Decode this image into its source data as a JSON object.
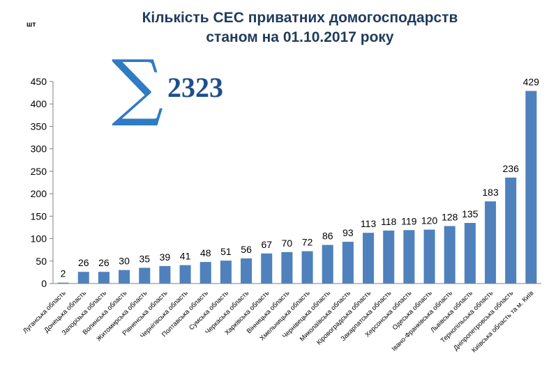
{
  "chart_data": {
    "type": "bar",
    "title_line1": "Кількість СЕС приватних домогосподарств",
    "title_line2": "станом на 01.10.2017 року",
    "unit_label": "шт",
    "sum_symbol": "∑",
    "total": "2323",
    "ylim": [
      0,
      450
    ],
    "yticks": [
      0,
      50,
      100,
      150,
      200,
      250,
      300,
      350,
      400,
      450
    ],
    "grid": false,
    "bar_color": "#4f81bd",
    "categories": [
      "Луганська область",
      "Донецька область",
      "Запорізька область",
      "Волинська область",
      "Житомирська область",
      "Рівненська область",
      "Чернігівська область",
      "Полтавська область",
      "Сумська область",
      "Черкаська область",
      "Харківська область",
      "Вінницька область",
      "Хмельницька область",
      "Чернівецька область",
      "Миколаївська область",
      "Кіровоградська область",
      "Закарпатська область",
      "Херсонська область",
      "Одеська область",
      "Івано-Франківська область",
      "Львівська область",
      "Тернопільська область",
      "Дніпропетровська область",
      "Київська область та м. Київ"
    ],
    "values": [
      2,
      26,
      26,
      30,
      35,
      39,
      41,
      48,
      51,
      56,
      67,
      70,
      72,
      86,
      93,
      113,
      118,
      119,
      120,
      128,
      135,
      183,
      236,
      429
    ]
  }
}
